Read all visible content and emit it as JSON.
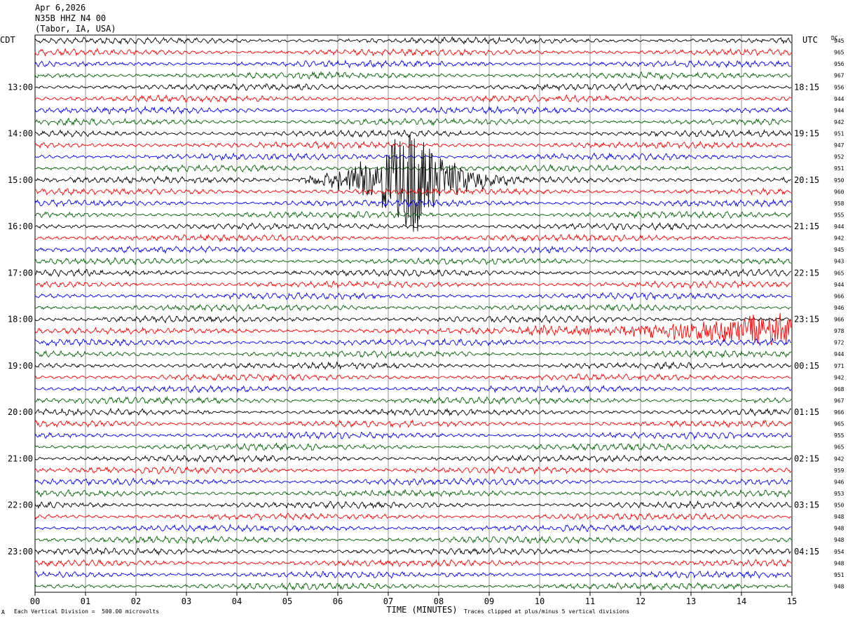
{
  "header": {
    "date": "Apr 6,2026",
    "station": "N35B HHZ N4 00",
    "location": "(Tabor, IA, USA)"
  },
  "left_zone": "CDT",
  "right_zone": "UTC",
  "dc_label": "DC",
  "footer": {
    "scale_note": "Each Vertical Division =  500.00 microvolts",
    "clip_note": "Traces clipped at plus/minus 5 vertical divisions",
    "corner_mark": "A"
  },
  "colors": {
    "cycle": [
      "#000000",
      "#ff0000",
      "#0000ff",
      "#006400"
    ],
    "grid": "#000000"
  },
  "chart_data": {
    "type": "line",
    "title": "N35B HHZ N4 00",
    "xlabel": "TIME (MINUTES)",
    "ylabel": "",
    "xlim": [
      0,
      15
    ],
    "x_ticks": [
      "00",
      "01",
      "02",
      "03",
      "04",
      "05",
      "06",
      "07",
      "08",
      "09",
      "10",
      "11",
      "12",
      "13",
      "14",
      "15"
    ],
    "trace_count": 48,
    "trace_minutes": 15,
    "left_hour_labels": [
      {
        "trace": 4,
        "label": "13:00"
      },
      {
        "trace": 8,
        "label": "14:00"
      },
      {
        "trace": 12,
        "label": "15:00"
      },
      {
        "trace": 16,
        "label": "16:00"
      },
      {
        "trace": 20,
        "label": "17:00"
      },
      {
        "trace": 24,
        "label": "18:00"
      },
      {
        "trace": 28,
        "label": "19:00"
      },
      {
        "trace": 32,
        "label": "20:00"
      },
      {
        "trace": 36,
        "label": "21:00"
      },
      {
        "trace": 40,
        "label": "22:00"
      },
      {
        "trace": 44,
        "label": "23:00"
      }
    ],
    "right_hour_labels": [
      {
        "trace": 4,
        "label": "18:15"
      },
      {
        "trace": 8,
        "label": "19:15"
      },
      {
        "trace": 12,
        "label": "20:15"
      },
      {
        "trace": 16,
        "label": "21:15"
      },
      {
        "trace": 20,
        "label": "22:15"
      },
      {
        "trace": 24,
        "label": "23:15"
      },
      {
        "trace": 28,
        "label": "00:15"
      },
      {
        "trace": 32,
        "label": "01:15"
      },
      {
        "trace": 36,
        "label": "02:15"
      },
      {
        "trace": 40,
        "label": "03:15"
      },
      {
        "trace": 44,
        "label": "04:15"
      }
    ],
    "dc_offsets": [
      945,
      965,
      956,
      967,
      956,
      944,
      944,
      942,
      951,
      947,
      952,
      951,
      950,
      960,
      958,
      955,
      944,
      942,
      945,
      943,
      965,
      944,
      966,
      946,
      966,
      978,
      972,
      944,
      971,
      942,
      968,
      967,
      966,
      965,
      955,
      965,
      942,
      959,
      946,
      953,
      950,
      948,
      948,
      948,
      954,
      948,
      951,
      948
    ],
    "events": [
      {
        "trace": 12,
        "start_min": 4.8,
        "peak_min": 7.5,
        "end_min": 12.0,
        "peak_divisions": 5,
        "note": "earthquake"
      },
      {
        "trace": 25,
        "start_min": 9.0,
        "peak_min": 14.8,
        "end_min": 15.0,
        "peak_divisions": 1.5,
        "note": "noise burst"
      }
    ]
  }
}
